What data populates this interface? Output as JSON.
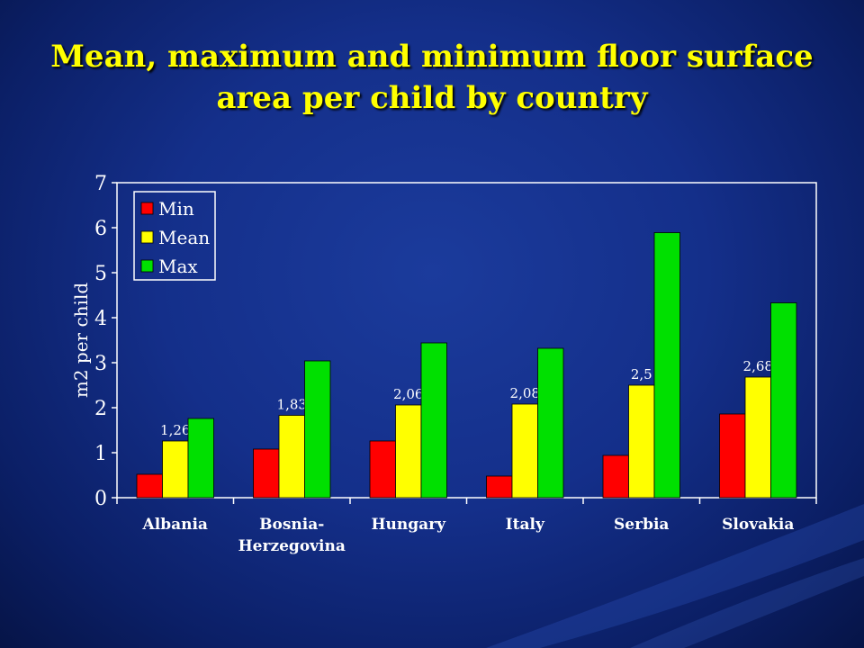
{
  "slide": {
    "title_line1": "Mean, maximum and minimum floor surface",
    "title_line2": "area per child by country"
  },
  "colors": {
    "text": "#ffffff",
    "title": "#ffff00",
    "min": "#ff0000",
    "mean": "#ffff00",
    "max": "#00e000",
    "axis": "#ffffff"
  },
  "chart_data": {
    "type": "bar",
    "title": "",
    "xlabel": "",
    "ylabel": "m2 per child",
    "ylim": [
      0,
      7
    ],
    "yticks": [
      0,
      1,
      2,
      3,
      4,
      5,
      6,
      7
    ],
    "grid": false,
    "legend_position": "top-left",
    "categories": [
      [
        "Albania"
      ],
      [
        "Bosnia-",
        "Herzegovina"
      ],
      [
        "Hungary"
      ],
      [
        "Italy"
      ],
      [
        "Serbia"
      ],
      [
        "Slovakia"
      ]
    ],
    "series": [
      {
        "name": "Min",
        "color": "#ff0000",
        "values": [
          0.52,
          1.08,
          1.26,
          0.48,
          0.94,
          1.86
        ]
      },
      {
        "name": "Mean",
        "color": "#ffff00",
        "values": [
          1.26,
          1.83,
          2.06,
          2.08,
          2.5,
          2.68
        ],
        "data_labels": [
          "1,26",
          "1,83",
          "2,06",
          "2,08",
          "2,5",
          "2,68"
        ]
      },
      {
        "name": "Max",
        "color": "#00e000",
        "values": [
          1.76,
          3.04,
          3.44,
          3.32,
          5.89,
          4.33
        ]
      }
    ]
  }
}
